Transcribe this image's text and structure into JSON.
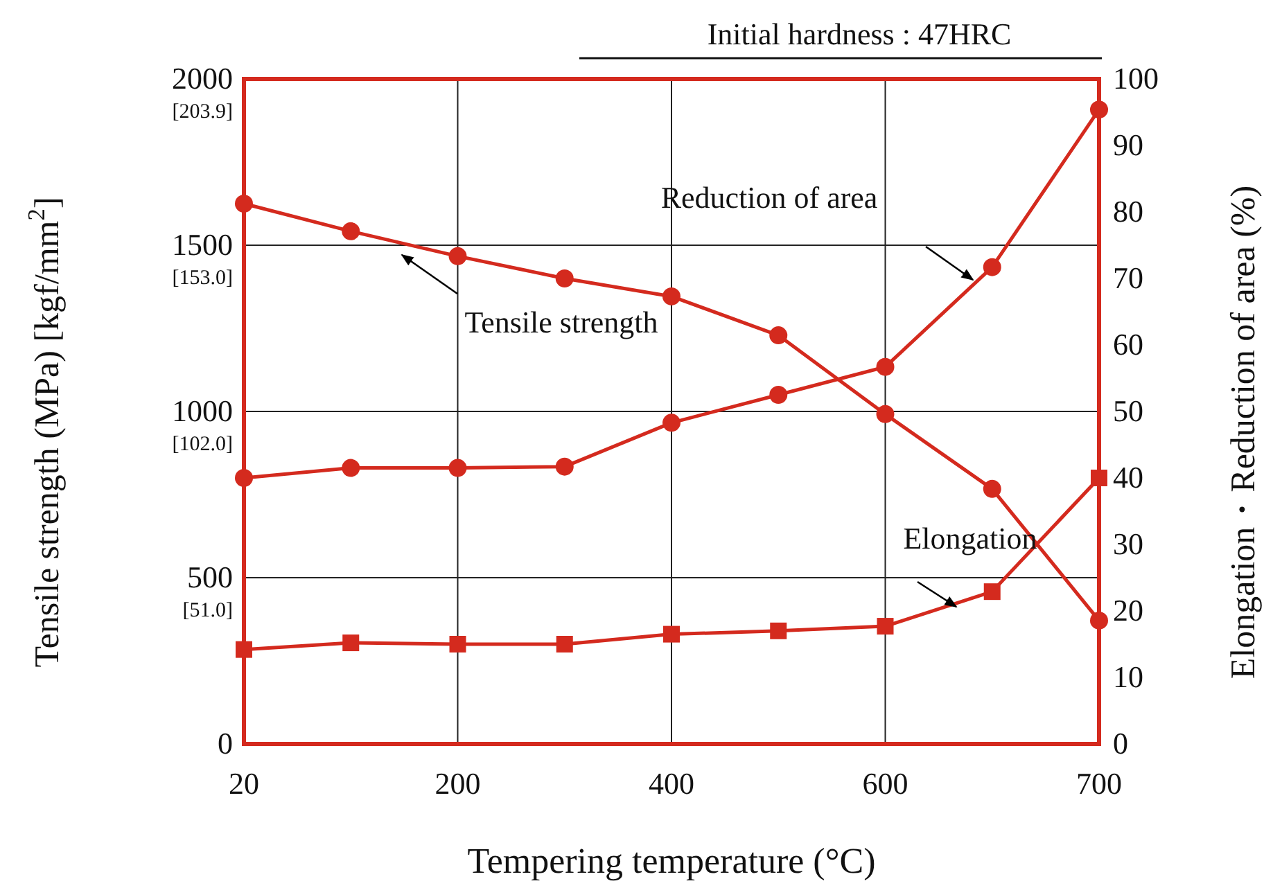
{
  "chart_data": {
    "type": "line",
    "xlabel": "Tempering temperature (°C)",
    "ylabel": "Tensile strength (MPa) [kgf/mm$^{2}$]",
    "y2label": "Elongation・Reduction of area (%)",
    "categories": [
      "20",
      null,
      "200",
      null,
      "400",
      null,
      "600",
      null,
      "700"
    ],
    "ylim": [
      0,
      2000
    ],
    "yticks": [
      0,
      500,
      1000,
      1500,
      2000
    ],
    "y2lim": [
      0,
      100
    ],
    "y2ticks": [
      0,
      10,
      20,
      30,
      40,
      50,
      60,
      70,
      80,
      90,
      100
    ],
    "grid": true,
    "legend": false,
    "series": [
      {
        "color": "#d42a1e",
        "marker": "circle",
        "values": [
          1625,
          1542,
          1467,
          1400,
          1346,
          1229,
          992,
          767,
          371
        ]
      },
      {
        "color": "#d42a1e",
        "marker": "circle",
        "axis": "y2",
        "values": [
          40,
          41.5,
          41.5,
          41.7,
          48.3,
          52.5,
          56.7,
          71.7,
          95.4
        ]
      },
      {
        "color": "#d42a1e",
        "marker": "square",
        "axis": "y2",
        "values": [
          14.2,
          15.2,
          15,
          15,
          16.5,
          17,
          17.7,
          22.9,
          40
        ]
      }
    ],
    "annotations": [
      "Initial hardness : 47HRC",
      "Reduction of area",
      "Tensile strength",
      "Elongation",
      "[51.0]",
      "[102.0]",
      "[153.0]",
      "[203.9]"
    ]
  }
}
